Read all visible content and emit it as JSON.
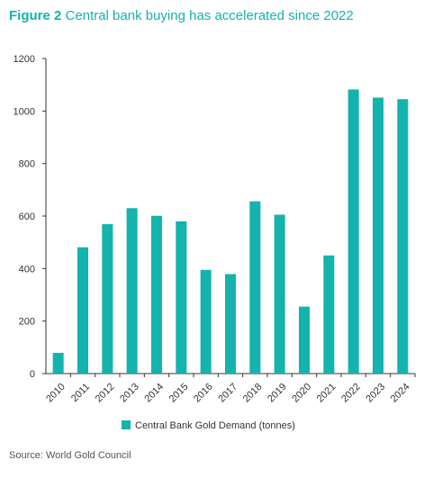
{
  "header": {
    "figure_label": "Figure 2",
    "title_text": "Central bank buying has accelerated since 2022"
  },
  "footer": {
    "source": "Source: World Gold Council"
  },
  "colors": {
    "accent": "#14b3ad",
    "axis": "#333333"
  },
  "chart_data": {
    "type": "bar",
    "title": "Central bank buying has accelerated since 2022",
    "xlabel": "",
    "ylabel": "",
    "categories": [
      "2010",
      "2011",
      "2012",
      "2013",
      "2014",
      "2015",
      "2016",
      "2017",
      "2018",
      "2019",
      "2020",
      "2021",
      "2022",
      "2023",
      "2024"
    ],
    "series": [
      {
        "name": "Central Bank Gold Demand (tonnes)",
        "values": [
          79,
          481,
          569,
          630,
          601,
          580,
          395,
          379,
          656,
          605,
          255,
          450,
          1082,
          1051,
          1045
        ],
        "color": "#14b3ad"
      }
    ],
    "ylim": [
      0,
      1200
    ],
    "yticks": [
      0,
      200,
      400,
      600,
      800,
      1000,
      1200
    ],
    "grid": false,
    "legend_position": "bottom-center"
  }
}
